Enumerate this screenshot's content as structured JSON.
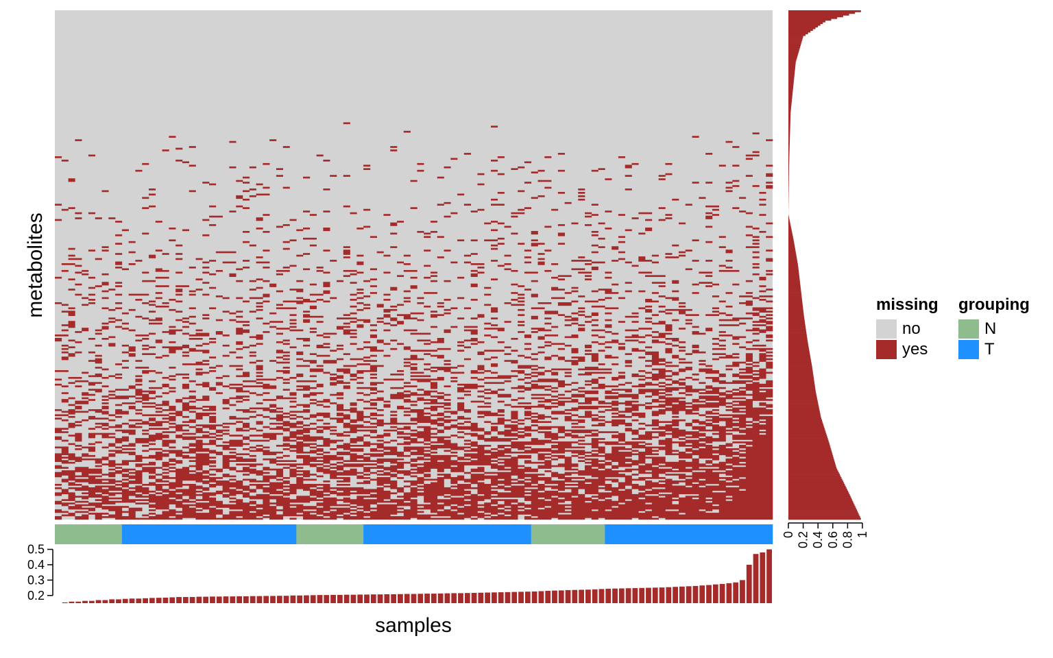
{
  "colors": {
    "missing_no": "#d3d3d3",
    "missing_yes": "#a52a2a",
    "group_N": "#8fbc8f",
    "group_T": "#1e90ff"
  },
  "labels": {
    "ylabel": "metabolites",
    "xlabel": "samples"
  },
  "legend": {
    "missing": {
      "title": "missing",
      "items": [
        "no",
        "yes"
      ]
    },
    "grouping": {
      "title": "grouping",
      "items": [
        "N",
        "T"
      ]
    }
  },
  "chart_data": [
    {
      "type": "heatmap",
      "title": "",
      "xlabel": "samples",
      "ylabel": "metabolites",
      "n_samples": 107,
      "n_metabolites": 300,
      "grouping_segments": [
        {
          "group": "N",
          "count": 10
        },
        {
          "group": "T",
          "count": 26
        },
        {
          "group": "N",
          "count": 10
        },
        {
          "group": "T",
          "count": 25
        },
        {
          "group": "N",
          "count": 11
        },
        {
          "group": "T",
          "count": 25
        }
      ],
      "legend": [
        {
          "name": "missing",
          "entries": [
            "no",
            "yes"
          ]
        },
        {
          "name": "grouping",
          "entries": [
            "N",
            "T"
          ]
        }
      ]
    },
    {
      "type": "bar",
      "title": "",
      "description_of": "missing fraction per sample (columns, sorted ascending)",
      "ylim": [
        0.15,
        0.52
      ],
      "yticks": [
        0.2,
        0.3,
        0.4,
        0.5
      ],
      "ytick_labels": [
        "0.2",
        "0.3",
        "0.4",
        "0.5"
      ],
      "values": [
        0.15,
        0.155,
        0.16,
        0.16,
        0.165,
        0.165,
        0.17,
        0.17,
        0.175,
        0.175,
        0.178,
        0.18,
        0.18,
        0.182,
        0.184,
        0.185,
        0.186,
        0.188,
        0.19,
        0.19,
        0.19,
        0.192,
        0.192,
        0.193,
        0.193,
        0.194,
        0.194,
        0.195,
        0.195,
        0.196,
        0.196,
        0.197,
        0.197,
        0.198,
        0.198,
        0.2,
        0.2,
        0.201,
        0.202,
        0.203,
        0.203,
        0.204,
        0.204,
        0.205,
        0.205,
        0.206,
        0.206,
        0.207,
        0.207,
        0.208,
        0.208,
        0.209,
        0.21,
        0.21,
        0.211,
        0.212,
        0.212,
        0.213,
        0.214,
        0.215,
        0.215,
        0.216,
        0.217,
        0.218,
        0.219,
        0.22,
        0.221,
        0.222,
        0.223,
        0.224,
        0.225,
        0.226,
        0.228,
        0.23,
        0.232,
        0.233,
        0.235,
        0.236,
        0.237,
        0.238,
        0.24,
        0.242,
        0.244,
        0.245,
        0.246,
        0.247,
        0.248,
        0.249,
        0.25,
        0.251,
        0.252,
        0.254,
        0.256,
        0.258,
        0.26,
        0.262,
        0.265,
        0.268,
        0.272,
        0.275,
        0.28,
        0.285,
        0.3,
        0.4,
        0.47,
        0.48,
        0.5
      ]
    },
    {
      "type": "bar",
      "title": "",
      "description_of": "missing fraction per metabolite (rows)",
      "orientation": "horizontal",
      "xlim": [
        0,
        1
      ],
      "xticks": [
        0,
        0.2,
        0.4,
        0.6,
        0.8,
        1
      ],
      "xtick_labels": [
        "0",
        "0.2",
        "0.4",
        "0.6",
        "0.8",
        "1"
      ],
      "profile": [
        [
          0,
          0.98
        ],
        [
          0.02,
          0.5
        ],
        [
          0.05,
          0.2
        ],
        [
          0.1,
          0.1
        ],
        [
          0.2,
          0.03
        ],
        [
          0.3,
          0.01
        ],
        [
          0.4,
          0.0
        ],
        [
          0.45,
          0.07
        ],
        [
          0.5,
          0.13
        ],
        [
          0.55,
          0.17
        ],
        [
          0.6,
          0.21
        ],
        [
          0.65,
          0.26
        ],
        [
          0.7,
          0.32
        ],
        [
          0.75,
          0.37
        ],
        [
          0.8,
          0.44
        ],
        [
          0.85,
          0.55
        ],
        [
          0.9,
          0.65
        ],
        [
          0.95,
          0.82
        ],
        [
          1.0,
          0.98
        ]
      ]
    }
  ]
}
